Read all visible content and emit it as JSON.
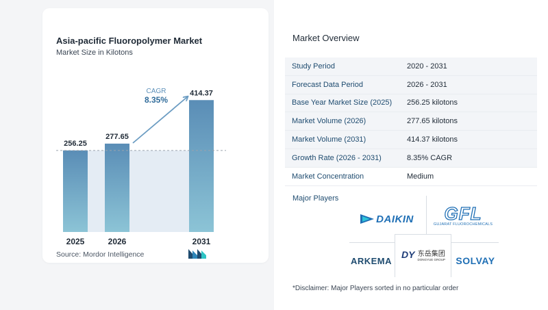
{
  "chart_data": {
    "type": "bar",
    "title": "Asia-pacific Fluoropolymer Market",
    "subtitle": "Market Size in Kilotons",
    "categories": [
      "2025",
      "2026",
      "2031"
    ],
    "values": [
      256.25,
      277.65,
      414.37
    ],
    "value_labels": [
      "256.25",
      "277.65",
      "414.37"
    ],
    "cagr_label": "CAGR",
    "cagr_value": "8.35%",
    "reference_line": 256.25,
    "ylim": [
      0,
      430
    ],
    "colors": {
      "bar": "#6b9cc2",
      "bar_top": "#5a8db6",
      "bar_bottom": "#8cc4d6",
      "area": "#e4ecf4",
      "arrow": "#6b9cc2",
      "cagr_label": "#5b8fb9",
      "cagr_value": "#2f6b9a"
    }
  },
  "source": "Source:  Mordor Intelligence",
  "overview": {
    "title": "Market Overview",
    "rows": [
      {
        "label": "Study Period",
        "value": "2020 - 2031"
      },
      {
        "label": "Forecast Data Period",
        "value": "2026 - 2031"
      },
      {
        "label": "Base Year Market Size (2025)",
        "value": "256.25 kilotons"
      },
      {
        "label": "Market Volume (2026)",
        "value": "277.65 kilotons"
      },
      {
        "label": "Market Volume (2031)",
        "value": "414.37 kilotons"
      },
      {
        "label": "Growth Rate (2026 - 2031)",
        "value": "8.35% CAGR"
      },
      {
        "label": "Market Concentration",
        "value": "Medium"
      }
    ]
  },
  "players": {
    "title": "Major Players",
    "logos": {
      "daikin": "DAIKIN",
      "gfl": "GFL",
      "gfl_sub": "GUJARAT FLUOROCHEMICALS",
      "arkema": "ARKEMA",
      "dongyue_mark": "DY",
      "dongyue_chinese": "东岳集团",
      "dongyue_en": "DONGYUE GROUP",
      "solvay": "SOLVAY"
    }
  },
  "disclaimer": "*Disclaimer: Major Players sorted in no particular order"
}
